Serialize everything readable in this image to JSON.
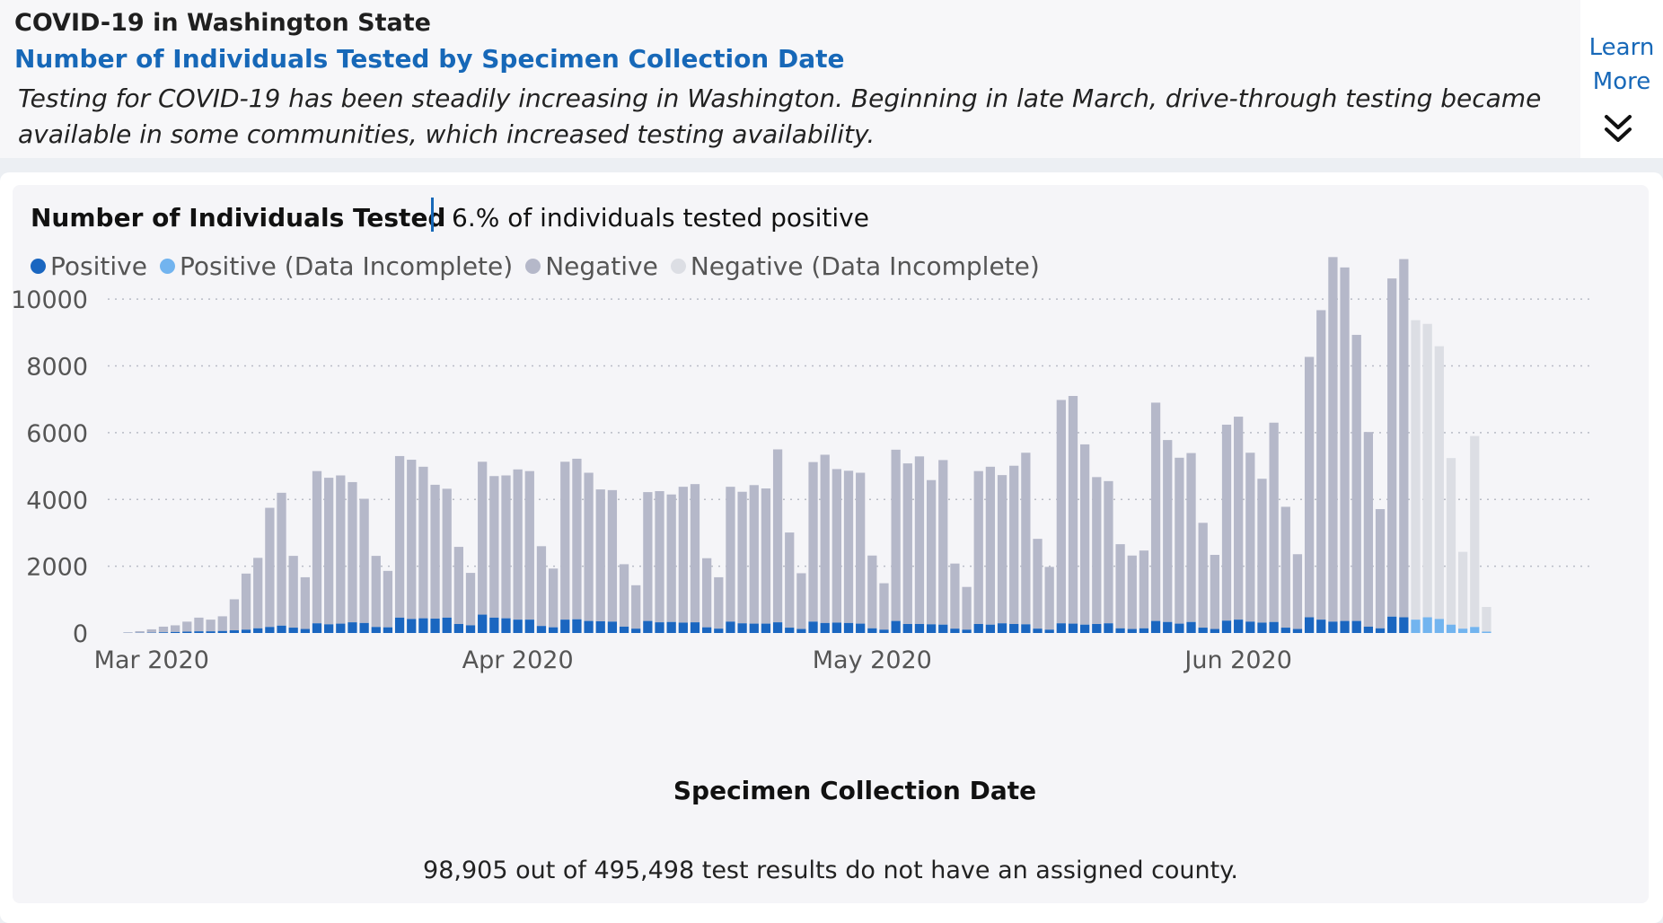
{
  "header": {
    "title": "COVID-19 in Washington State",
    "subtitle": "Number of Individuals Tested by Specimen Collection Date",
    "description": "Testing for COVID-19 has been steadily increasing in Washington. Beginning in late March, drive-through testing became available in some communities, which increased testing availability.",
    "learn_more_line1": "Learn",
    "learn_more_line2": "More",
    "expand_icon": "double-chevron-down-icon"
  },
  "chart": {
    "title": "Number of Individuals Tested",
    "stat": "6.% of individuals tested positive",
    "footnote": "98,905 out of 495,498 test results do not have an assigned county."
  },
  "colors": {
    "positive": "#1a66c0",
    "positive_incomplete": "#72b4ef",
    "negative": "#b5b8c9",
    "negative_incomplete": "#dcdee4",
    "accent": "#1768b8"
  },
  "chart_data": {
    "type": "bar",
    "stacked": true,
    "title": "Number of Individuals Tested",
    "xlabel": "Specimen Collection Date",
    "ylabel": "",
    "ylim": [
      0,
      11000
    ],
    "yticks": [
      0,
      2000,
      4000,
      6000,
      8000,
      10000
    ],
    "grid": true,
    "legend_placement": "top-left",
    "x_start": "2020-02-28",
    "x_end": "2020-07-03",
    "xtick_labels": [
      {
        "label": "Mar 2020",
        "date": "2020-03-01"
      },
      {
        "label": "Apr 2020",
        "date": "2020-04-01"
      },
      {
        "label": "May 2020",
        "date": "2020-05-01"
      },
      {
        "label": "Jun 2020",
        "date": "2020-06-01"
      }
    ],
    "series": [
      {
        "name": "Positive",
        "color_key": "positive"
      },
      {
        "name": "Positive (Data Incomplete)",
        "color_key": "positive_incomplete"
      },
      {
        "name": "Negative",
        "color_key": "negative"
      },
      {
        "name": "Negative (Data Incomplete)",
        "color_key": "negative_incomplete"
      }
    ],
    "days": [
      {
        "date": "2020-02-28",
        "positive": 2,
        "negative": 20,
        "incomplete": false
      },
      {
        "date": "2020-02-29",
        "positive": 5,
        "negative": 50,
        "incomplete": false
      },
      {
        "date": "2020-03-01",
        "positive": 10,
        "negative": 100,
        "incomplete": false
      },
      {
        "date": "2020-03-02",
        "positive": 20,
        "negative": 170,
        "incomplete": false
      },
      {
        "date": "2020-03-03",
        "positive": 30,
        "negative": 200,
        "incomplete": false
      },
      {
        "date": "2020-03-04",
        "positive": 40,
        "negative": 300,
        "incomplete": false
      },
      {
        "date": "2020-03-05",
        "positive": 50,
        "negative": 410,
        "incomplete": false
      },
      {
        "date": "2020-03-06",
        "positive": 50,
        "negative": 350,
        "incomplete": false
      },
      {
        "date": "2020-03-07",
        "positive": 60,
        "negative": 440,
        "incomplete": false
      },
      {
        "date": "2020-03-08",
        "positive": 80,
        "negative": 930,
        "incomplete": false
      },
      {
        "date": "2020-03-09",
        "positive": 100,
        "negative": 1680,
        "incomplete": false
      },
      {
        "date": "2020-03-10",
        "positive": 140,
        "negative": 2110,
        "incomplete": false
      },
      {
        "date": "2020-03-11",
        "positive": 180,
        "negative": 3570,
        "incomplete": false
      },
      {
        "date": "2020-03-12",
        "positive": 220,
        "negative": 3980,
        "incomplete": false
      },
      {
        "date": "2020-03-13",
        "positive": 160,
        "negative": 2150,
        "incomplete": false
      },
      {
        "date": "2020-03-14",
        "positive": 120,
        "negative": 1550,
        "incomplete": false
      },
      {
        "date": "2020-03-15",
        "positive": 290,
        "negative": 4560,
        "incomplete": false
      },
      {
        "date": "2020-03-16",
        "positive": 260,
        "negative": 4390,
        "incomplete": false
      },
      {
        "date": "2020-03-17",
        "positive": 280,
        "negative": 4440,
        "incomplete": false
      },
      {
        "date": "2020-03-18",
        "positive": 320,
        "negative": 4200,
        "incomplete": false
      },
      {
        "date": "2020-03-19",
        "positive": 300,
        "negative": 3720,
        "incomplete": false
      },
      {
        "date": "2020-03-20",
        "positive": 180,
        "negative": 2130,
        "incomplete": false
      },
      {
        "date": "2020-03-21",
        "positive": 170,
        "negative": 1690,
        "incomplete": false
      },
      {
        "date": "2020-03-22",
        "positive": 460,
        "negative": 4840,
        "incomplete": false
      },
      {
        "date": "2020-03-23",
        "positive": 420,
        "negative": 4770,
        "incomplete": false
      },
      {
        "date": "2020-03-24",
        "positive": 440,
        "negative": 4540,
        "incomplete": false
      },
      {
        "date": "2020-03-25",
        "positive": 430,
        "negative": 4010,
        "incomplete": false
      },
      {
        "date": "2020-03-26",
        "positive": 460,
        "negative": 3860,
        "incomplete": false
      },
      {
        "date": "2020-03-27",
        "positive": 270,
        "negative": 2310,
        "incomplete": false
      },
      {
        "date": "2020-03-28",
        "positive": 230,
        "negative": 1570,
        "incomplete": false
      },
      {
        "date": "2020-03-29",
        "positive": 550,
        "negative": 4580,
        "incomplete": false
      },
      {
        "date": "2020-03-30",
        "positive": 460,
        "negative": 4240,
        "incomplete": false
      },
      {
        "date": "2020-03-31",
        "positive": 440,
        "negative": 4280,
        "incomplete": false
      },
      {
        "date": "2020-04-01",
        "positive": 400,
        "negative": 4500,
        "incomplete": false
      },
      {
        "date": "2020-04-02",
        "positive": 400,
        "negative": 4450,
        "incomplete": false
      },
      {
        "date": "2020-04-03",
        "positive": 210,
        "negative": 2390,
        "incomplete": false
      },
      {
        "date": "2020-04-04",
        "positive": 170,
        "negative": 1760,
        "incomplete": false
      },
      {
        "date": "2020-04-05",
        "positive": 400,
        "negative": 4730,
        "incomplete": false
      },
      {
        "date": "2020-04-06",
        "positive": 410,
        "negative": 4810,
        "incomplete": false
      },
      {
        "date": "2020-04-07",
        "positive": 360,
        "negative": 4440,
        "incomplete": false
      },
      {
        "date": "2020-04-08",
        "positive": 350,
        "negative": 3950,
        "incomplete": false
      },
      {
        "date": "2020-04-09",
        "positive": 340,
        "negative": 3940,
        "incomplete": false
      },
      {
        "date": "2020-04-10",
        "positive": 190,
        "negative": 1870,
        "incomplete": false
      },
      {
        "date": "2020-04-11",
        "positive": 130,
        "negative": 1300,
        "incomplete": false
      },
      {
        "date": "2020-04-12",
        "positive": 360,
        "negative": 3860,
        "incomplete": false
      },
      {
        "date": "2020-04-13",
        "positive": 320,
        "negative": 3930,
        "incomplete": false
      },
      {
        "date": "2020-04-14",
        "positive": 330,
        "negative": 3820,
        "incomplete": false
      },
      {
        "date": "2020-04-15",
        "positive": 310,
        "negative": 4070,
        "incomplete": false
      },
      {
        "date": "2020-04-16",
        "positive": 320,
        "negative": 4140,
        "incomplete": false
      },
      {
        "date": "2020-04-17",
        "positive": 170,
        "negative": 2070,
        "incomplete": false
      },
      {
        "date": "2020-04-18",
        "positive": 130,
        "negative": 1540,
        "incomplete": false
      },
      {
        "date": "2020-04-19",
        "positive": 340,
        "negative": 4040,
        "incomplete": false
      },
      {
        "date": "2020-04-20",
        "positive": 290,
        "negative": 3940,
        "incomplete": false
      },
      {
        "date": "2020-04-21",
        "positive": 280,
        "negative": 4150,
        "incomplete": false
      },
      {
        "date": "2020-04-22",
        "positive": 280,
        "negative": 4050,
        "incomplete": false
      },
      {
        "date": "2020-04-23",
        "positive": 320,
        "negative": 5180,
        "incomplete": false
      },
      {
        "date": "2020-04-24",
        "positive": 160,
        "negative": 2850,
        "incomplete": false
      },
      {
        "date": "2020-04-25",
        "positive": 120,
        "negative": 1670,
        "incomplete": false
      },
      {
        "date": "2020-04-26",
        "positive": 340,
        "negative": 4780,
        "incomplete": false
      },
      {
        "date": "2020-04-27",
        "positive": 300,
        "negative": 5040,
        "incomplete": false
      },
      {
        "date": "2020-04-28",
        "positive": 310,
        "negative": 4600,
        "incomplete": false
      },
      {
        "date": "2020-04-29",
        "positive": 300,
        "negative": 4560,
        "incomplete": false
      },
      {
        "date": "2020-04-30",
        "positive": 280,
        "negative": 4520,
        "incomplete": false
      },
      {
        "date": "2020-05-01",
        "positive": 140,
        "negative": 2180,
        "incomplete": false
      },
      {
        "date": "2020-05-02",
        "positive": 100,
        "negative": 1390,
        "incomplete": false
      },
      {
        "date": "2020-05-03",
        "positive": 360,
        "negative": 5130,
        "incomplete": false
      },
      {
        "date": "2020-05-04",
        "positive": 270,
        "negative": 4810,
        "incomplete": false
      },
      {
        "date": "2020-05-05",
        "positive": 270,
        "negative": 5020,
        "incomplete": false
      },
      {
        "date": "2020-05-06",
        "positive": 260,
        "negative": 4320,
        "incomplete": false
      },
      {
        "date": "2020-05-07",
        "positive": 250,
        "negative": 4930,
        "incomplete": false
      },
      {
        "date": "2020-05-08",
        "positive": 130,
        "negative": 1950,
        "incomplete": false
      },
      {
        "date": "2020-05-09",
        "positive": 100,
        "negative": 1280,
        "incomplete": false
      },
      {
        "date": "2020-05-10",
        "positive": 270,
        "negative": 4580,
        "incomplete": false
      },
      {
        "date": "2020-05-11",
        "positive": 250,
        "negative": 4730,
        "incomplete": false
      },
      {
        "date": "2020-05-12",
        "positive": 290,
        "negative": 4440,
        "incomplete": false
      },
      {
        "date": "2020-05-13",
        "positive": 270,
        "negative": 4740,
        "incomplete": false
      },
      {
        "date": "2020-05-14",
        "positive": 260,
        "negative": 5140,
        "incomplete": false
      },
      {
        "date": "2020-05-15",
        "positive": 130,
        "negative": 2690,
        "incomplete": false
      },
      {
        "date": "2020-05-16",
        "positive": 100,
        "negative": 1880,
        "incomplete": false
      },
      {
        "date": "2020-05-17",
        "positive": 290,
        "negative": 6690,
        "incomplete": false
      },
      {
        "date": "2020-05-18",
        "positive": 280,
        "negative": 6820,
        "incomplete": false
      },
      {
        "date": "2020-05-19",
        "positive": 250,
        "negative": 5400,
        "incomplete": false
      },
      {
        "date": "2020-05-20",
        "positive": 270,
        "negative": 4400,
        "incomplete": false
      },
      {
        "date": "2020-05-21",
        "positive": 290,
        "negative": 4260,
        "incomplete": false
      },
      {
        "date": "2020-05-22",
        "positive": 140,
        "negative": 2520,
        "incomplete": false
      },
      {
        "date": "2020-05-23",
        "positive": 120,
        "negative": 2200,
        "incomplete": false
      },
      {
        "date": "2020-05-24",
        "positive": 140,
        "negative": 2330,
        "incomplete": false
      },
      {
        "date": "2020-05-25",
        "positive": 360,
        "negative": 6540,
        "incomplete": false
      },
      {
        "date": "2020-05-26",
        "positive": 330,
        "negative": 5450,
        "incomplete": false
      },
      {
        "date": "2020-05-27",
        "positive": 280,
        "negative": 4970,
        "incomplete": false
      },
      {
        "date": "2020-05-28",
        "positive": 330,
        "negative": 5060,
        "incomplete": false
      },
      {
        "date": "2020-05-29",
        "positive": 160,
        "negative": 3140,
        "incomplete": false
      },
      {
        "date": "2020-05-30",
        "positive": 120,
        "negative": 2220,
        "incomplete": false
      },
      {
        "date": "2020-05-31",
        "positive": 370,
        "negative": 5870,
        "incomplete": false
      },
      {
        "date": "2020-06-01",
        "positive": 400,
        "negative": 6080,
        "incomplete": false
      },
      {
        "date": "2020-06-02",
        "positive": 340,
        "negative": 5060,
        "incomplete": false
      },
      {
        "date": "2020-06-03",
        "positive": 310,
        "negative": 4310,
        "incomplete": false
      },
      {
        "date": "2020-06-04",
        "positive": 330,
        "negative": 5970,
        "incomplete": false
      },
      {
        "date": "2020-06-05",
        "positive": 160,
        "negative": 3620,
        "incomplete": false
      },
      {
        "date": "2020-06-06",
        "positive": 120,
        "negative": 2240,
        "incomplete": false
      },
      {
        "date": "2020-06-07",
        "positive": 470,
        "negative": 7800,
        "incomplete": false
      },
      {
        "date": "2020-06-08",
        "positive": 400,
        "negative": 9270,
        "incomplete": false
      },
      {
        "date": "2020-06-09",
        "positive": 340,
        "negative": 10920,
        "incomplete": false
      },
      {
        "date": "2020-06-10",
        "positive": 360,
        "negative": 10590,
        "incomplete": false
      },
      {
        "date": "2020-06-11",
        "positive": 360,
        "negative": 8570,
        "incomplete": false
      },
      {
        "date": "2020-06-12",
        "positive": 190,
        "negative": 5830,
        "incomplete": false
      },
      {
        "date": "2020-06-13",
        "positive": 140,
        "negative": 3570,
        "incomplete": false
      },
      {
        "date": "2020-06-14",
        "positive": 490,
        "negative": 10130,
        "incomplete": false
      },
      {
        "date": "2020-06-15",
        "positive": 470,
        "negative": 10730,
        "incomplete": false
      },
      {
        "date": "2020-06-16",
        "positive": 400,
        "negative": 8970,
        "incomplete": true
      },
      {
        "date": "2020-06-17",
        "positive": 470,
        "negative": 8790,
        "incomplete": true
      },
      {
        "date": "2020-06-18",
        "positive": 420,
        "negative": 8170,
        "incomplete": true
      },
      {
        "date": "2020-06-19",
        "positive": 250,
        "negative": 4990,
        "incomplete": true
      },
      {
        "date": "2020-06-20",
        "positive": 130,
        "negative": 2300,
        "incomplete": true
      },
      {
        "date": "2020-06-21",
        "positive": 180,
        "negative": 5720,
        "incomplete": true
      },
      {
        "date": "2020-06-22",
        "positive": 40,
        "negative": 740,
        "incomplete": true
      }
    ]
  }
}
